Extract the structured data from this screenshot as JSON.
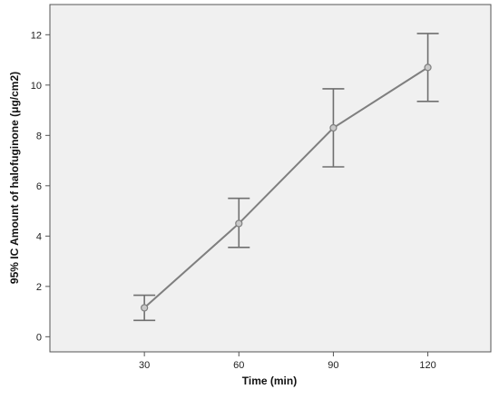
{
  "chart_data": {
    "type": "line",
    "title": "",
    "xlabel": "Time (min)",
    "ylabel": "95% IC Amount of halofuginone (μg/cm2)",
    "x": [
      30,
      60,
      90,
      120
    ],
    "x_tick_labels": [
      "30",
      "60",
      "90",
      "120"
    ],
    "series": [
      {
        "values": [
          1.15,
          4.5,
          8.3,
          10.7
        ],
        "error_lower": [
          0.65,
          3.55,
          6.75,
          9.35
        ],
        "error_upper": [
          1.65,
          5.5,
          9.85,
          12.05
        ]
      }
    ],
    "xlim": [
      0,
      140
    ],
    "ylim": [
      -0.6,
      13.2
    ],
    "y_ticks": [
      0,
      2,
      4,
      6,
      8,
      10,
      12
    ],
    "y_tick_labels": [
      "0",
      "2",
      "4",
      "6",
      "8",
      "10",
      "12"
    ],
    "grid": false,
    "legend": "none",
    "colors": {
      "plot_background": "#f0f0f0",
      "line": "#7f7f7f",
      "error_bar": "#6f6f6f",
      "marker_fill": "#c9c9c9",
      "axis": "#555555"
    }
  }
}
